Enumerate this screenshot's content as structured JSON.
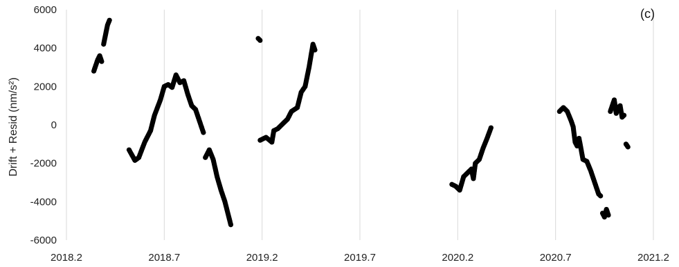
{
  "chart_data": {
    "type": "scatter",
    "annotation": "(c)",
    "ylabel": "Drift + Resid (nm/s²)",
    "xlim": [
      2018.2,
      2021.2
    ],
    "ylim": [
      -6000,
      6000
    ],
    "x_ticks": [
      2018.2,
      2018.7,
      2019.2,
      2019.7,
      2020.2,
      2020.7,
      2021.2
    ],
    "x_tick_labels": [
      "2018.2",
      "2018.7",
      "2019.2",
      "2019.7",
      "2020.2",
      "2020.7",
      "2021.2"
    ],
    "y_ticks": [
      6000,
      4000,
      2000,
      0,
      -2000,
      -4000,
      -6000
    ],
    "y_tick_labels": [
      "6000",
      "4000",
      "2000",
      "0",
      "-2000",
      "-4000",
      "-6000"
    ],
    "grid": "vertical",
    "marker_color": "#000000",
    "series": [
      {
        "segments": [
          [
            [
              2018.34,
              2800
            ],
            [
              2018.35,
              3100
            ],
            [
              2018.36,
              3400
            ],
            [
              2018.37,
              3600
            ],
            [
              2018.38,
              3300
            ]
          ],
          [
            [
              2018.39,
              4200
            ],
            [
              2018.4,
              4700
            ],
            [
              2018.41,
              5200
            ],
            [
              2018.42,
              5450
            ]
          ],
          [
            [
              2018.52,
              -1300
            ],
            [
              2018.55,
              -1850
            ],
            [
              2018.57,
              -1700
            ],
            [
              2018.6,
              -900
            ],
            [
              2018.63,
              -300
            ],
            [
              2018.65,
              500
            ],
            [
              2018.68,
              1300
            ],
            [
              2018.7,
              2000
            ],
            [
              2018.72,
              2100
            ],
            [
              2018.74,
              1950
            ],
            [
              2018.76,
              2600
            ],
            [
              2018.78,
              2200
            ],
            [
              2018.8,
              2300
            ],
            [
              2018.82,
              1600
            ],
            [
              2018.84,
              1000
            ],
            [
              2018.86,
              800
            ],
            [
              2018.88,
              200
            ],
            [
              2018.9,
              -400
            ]
          ],
          [
            [
              2018.91,
              -1700
            ],
            [
              2018.93,
              -1300
            ],
            [
              2018.95,
              -1800
            ],
            [
              2018.97,
              -2700
            ],
            [
              2018.99,
              -3400
            ],
            [
              2019.01,
              -4000
            ],
            [
              2019.03,
              -4800
            ],
            [
              2019.04,
              -5200
            ]
          ],
          [
            [
              2019.18,
              4500
            ],
            [
              2019.19,
              4400
            ]
          ],
          [
            [
              2019.19,
              -800
            ],
            [
              2019.22,
              -650
            ],
            [
              2019.25,
              -900
            ],
            [
              2019.26,
              -300
            ],
            [
              2019.28,
              -200
            ],
            [
              2019.3,
              0
            ],
            [
              2019.33,
              300
            ],
            [
              2019.35,
              700
            ],
            [
              2019.38,
              900
            ],
            [
              2019.4,
              1700
            ],
            [
              2019.42,
              2000
            ],
            [
              2019.44,
              3000
            ],
            [
              2019.45,
              3600
            ],
            [
              2019.46,
              4200
            ],
            [
              2019.47,
              3900
            ]
          ],
          [
            [
              2020.17,
              -3100
            ],
            [
              2020.19,
              -3200
            ],
            [
              2020.21,
              -3400
            ],
            [
              2020.23,
              -2700
            ],
            [
              2020.25,
              -2500
            ],
            [
              2020.27,
              -2300
            ],
            [
              2020.28,
              -2800
            ],
            [
              2020.29,
              -2000
            ],
            [
              2020.31,
              -1800
            ],
            [
              2020.33,
              -1200
            ],
            [
              2020.35,
              -700
            ],
            [
              2020.37,
              -150
            ]
          ],
          [
            [
              2020.72,
              700
            ],
            [
              2020.74,
              900
            ],
            [
              2020.76,
              700
            ],
            [
              2020.78,
              200
            ],
            [
              2020.79,
              -100
            ],
            [
              2020.8,
              -900
            ],
            [
              2020.81,
              -1100
            ],
            [
              2020.82,
              -700
            ],
            [
              2020.84,
              -1800
            ],
            [
              2020.86,
              -1900
            ],
            [
              2020.88,
              -2400
            ],
            [
              2020.9,
              -3000
            ],
            [
              2020.92,
              -3600
            ],
            [
              2020.93,
              -3700
            ]
          ],
          [
            [
              2020.94,
              -4600
            ],
            [
              2020.95,
              -4800
            ],
            [
              2020.96,
              -4400
            ],
            [
              2020.97,
              -4700
            ]
          ],
          [
            [
              2020.98,
              700
            ],
            [
              2020.99,
              1000
            ],
            [
              2021.0,
              1300
            ],
            [
              2021.01,
              600
            ],
            [
              2021.02,
              900
            ],
            [
              2021.03,
              1000
            ],
            [
              2021.04,
              400
            ],
            [
              2021.05,
              500
            ]
          ],
          [
            [
              2021.06,
              -1000
            ],
            [
              2021.07,
              -1150
            ]
          ]
        ]
      }
    ]
  }
}
